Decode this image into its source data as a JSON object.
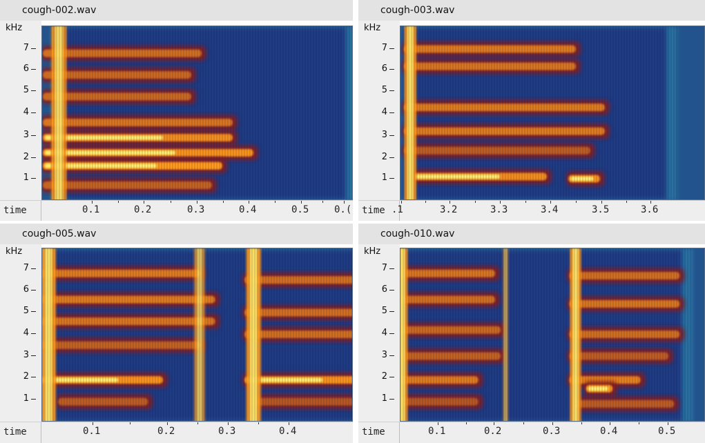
{
  "panels": [
    {
      "filename": "cough-002.wav",
      "y_unit": "kHz",
      "y_ticks": [
        "7",
        "6",
        "5",
        "4",
        "3",
        "2",
        "1"
      ],
      "time_label": "time",
      "time_ticks": [
        "0.1",
        "0.2",
        "0.3",
        "0.4",
        "0.5",
        "0.("
      ],
      "bands": [
        {
          "freq_khz": 6.8,
          "t0": 0.0,
          "t1": 0.32,
          "intensity": 0.65
        },
        {
          "freq_khz": 5.8,
          "t0": 0.0,
          "t1": 0.3,
          "intensity": 0.6
        },
        {
          "freq_khz": 4.8,
          "t0": 0.0,
          "t1": 0.3,
          "intensity": 0.6
        },
        {
          "freq_khz": 3.6,
          "t0": 0.0,
          "t1": 0.38,
          "intensity": 0.7
        },
        {
          "freq_khz": 2.9,
          "t0": 0.0,
          "t1": 0.38,
          "intensity": 0.9
        },
        {
          "freq_khz": 2.2,
          "t0": 0.0,
          "t1": 0.42,
          "intensity": 0.95
        },
        {
          "freq_khz": 1.6,
          "t0": 0.0,
          "t1": 0.36,
          "intensity": 1.0
        },
        {
          "freq_khz": 0.7,
          "t0": 0.0,
          "t1": 0.34,
          "intensity": 0.55
        }
      ],
      "pulses": [
        {
          "t": 0.02,
          "w": 0.03,
          "intensity": 0.95
        }
      ],
      "span": [
        0.02,
        0.61
      ]
    },
    {
      "filename": "cough-003.wav",
      "y_unit": "kHz",
      "y_ticks": [
        "7",
        "6",
        "5",
        "4",
        "3",
        "2",
        "1"
      ],
      "time_label": "time",
      "time_ticks": [
        ".1",
        "3.2",
        "3.3",
        "3.4",
        "3.5",
        "3.6"
      ],
      "bands": [
        {
          "freq_khz": 7.0,
          "t0": 3.1,
          "t1": 3.47,
          "intensity": 0.75
        },
        {
          "freq_khz": 6.2,
          "t0": 3.1,
          "t1": 3.47,
          "intensity": 0.7
        },
        {
          "freq_khz": 4.3,
          "t0": 3.1,
          "t1": 3.53,
          "intensity": 0.75
        },
        {
          "freq_khz": 3.2,
          "t0": 3.1,
          "t1": 3.53,
          "intensity": 0.75
        },
        {
          "freq_khz": 2.3,
          "t0": 3.1,
          "t1": 3.5,
          "intensity": 0.5
        },
        {
          "freq_khz": 1.1,
          "t0": 3.12,
          "t1": 3.41,
          "intensity": 0.9
        },
        {
          "freq_khz": 1.0,
          "t0": 3.44,
          "t1": 3.52,
          "intensity": 0.95
        }
      ],
      "pulses": [
        {
          "t": 3.105,
          "w": 0.025,
          "intensity": 1.0
        }
      ],
      "span": [
        3.095,
        3.67
      ]
    },
    {
      "filename": "cough-005.wav",
      "y_unit": "kHz",
      "y_ticks": [
        "7",
        "6",
        "5",
        "4",
        "3",
        "2",
        "1"
      ],
      "time_label": "time",
      "time_ticks": [
        "0.1",
        "0.2",
        "0.3",
        "0.4"
      ],
      "bands": [
        {
          "freq_khz": 6.8,
          "t0": 0.02,
          "t1": 0.25,
          "intensity": 0.75
        },
        {
          "freq_khz": 5.6,
          "t0": 0.02,
          "t1": 0.27,
          "intensity": 0.75
        },
        {
          "freq_khz": 4.6,
          "t0": 0.02,
          "t1": 0.27,
          "intensity": 0.7
        },
        {
          "freq_khz": 3.5,
          "t0": 0.02,
          "t1": 0.25,
          "intensity": 0.55
        },
        {
          "freq_khz": 1.9,
          "t0": 0.02,
          "t1": 0.2,
          "intensity": 0.95
        },
        {
          "freq_khz": 0.9,
          "t0": 0.05,
          "t1": 0.18,
          "intensity": 0.5
        },
        {
          "freq_khz": 6.5,
          "t0": 0.3,
          "t1": 0.47,
          "intensity": 0.65
        },
        {
          "freq_khz": 5.0,
          "t0": 0.3,
          "t1": 0.47,
          "intensity": 0.65
        },
        {
          "freq_khz": 4.0,
          "t0": 0.3,
          "t1": 0.47,
          "intensity": 0.65
        },
        {
          "freq_khz": 1.9,
          "t0": 0.3,
          "t1": 0.47,
          "intensity": 0.95
        },
        {
          "freq_khz": 0.9,
          "t0": 0.31,
          "t1": 0.46,
          "intensity": 0.45
        }
      ],
      "pulses": [
        {
          "t": 0.03,
          "w": 0.02,
          "intensity": 1.0
        },
        {
          "t": 0.235,
          "w": 0.015,
          "intensity": 0.75
        },
        {
          "t": 0.305,
          "w": 0.02,
          "intensity": 1.0
        }
      ],
      "span": [
        0.01,
        0.47
      ]
    },
    {
      "filename": "cough-010.wav",
      "y_unit": "kHz",
      "y_ticks": [
        "7",
        "6",
        "5",
        "4",
        "3",
        "2",
        "1"
      ],
      "time_label": "time",
      "time_ticks": [
        "0.1",
        "0.2",
        "0.3",
        "0.4",
        "0.5"
      ],
      "bands": [
        {
          "freq_khz": 6.8,
          "t0": 0.02,
          "t1": 0.21,
          "intensity": 0.7
        },
        {
          "freq_khz": 5.6,
          "t0": 0.02,
          "t1": 0.21,
          "intensity": 0.65
        },
        {
          "freq_khz": 4.2,
          "t0": 0.02,
          "t1": 0.22,
          "intensity": 0.6
        },
        {
          "freq_khz": 3.0,
          "t0": 0.02,
          "t1": 0.22,
          "intensity": 0.55
        },
        {
          "freq_khz": 1.9,
          "t0": 0.02,
          "t1": 0.18,
          "intensity": 0.75
        },
        {
          "freq_khz": 0.9,
          "t0": 0.03,
          "t1": 0.18,
          "intensity": 0.45
        },
        {
          "freq_khz": 6.7,
          "t0": 0.33,
          "t1": 0.54,
          "intensity": 0.65
        },
        {
          "freq_khz": 5.4,
          "t0": 0.33,
          "t1": 0.54,
          "intensity": 0.7
        },
        {
          "freq_khz": 4.0,
          "t0": 0.33,
          "t1": 0.54,
          "intensity": 0.65
        },
        {
          "freq_khz": 3.0,
          "t0": 0.33,
          "t1": 0.52,
          "intensity": 0.5
        },
        {
          "freq_khz": 1.9,
          "t0": 0.33,
          "t1": 0.47,
          "intensity": 0.8
        },
        {
          "freq_khz": 1.5,
          "t0": 0.36,
          "t1": 0.42,
          "intensity": 1.0
        },
        {
          "freq_khz": 0.8,
          "t0": 0.34,
          "t1": 0.53,
          "intensity": 0.5
        }
      ],
      "pulses": [
        {
          "t": 0.025,
          "w": 0.02,
          "intensity": 1.0
        },
        {
          "t": 0.215,
          "w": 0.01,
          "intensity": 0.6
        },
        {
          "t": 0.335,
          "w": 0.02,
          "intensity": 1.0
        }
      ],
      "span": [
        0.005,
        0.555
      ]
    }
  ],
  "colors": {
    "background": "#22538c",
    "low": "#1d2b7a",
    "mid": "#8a1a1a",
    "high": "#ff9a1a",
    "peak": "#ffff80",
    "fringe": "#39a9c8"
  }
}
